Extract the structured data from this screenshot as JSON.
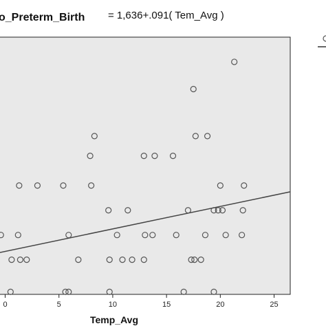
{
  "chart_data": {
    "type": "scatter",
    "equation": {
      "label": "o_Preterm_Birth",
      "text": "= 1,636+.091( Tem_Avg )"
    },
    "xlabel": "Temp_Avg",
    "x_ticks": [
      "0",
      "5",
      "10",
      "15",
      "20",
      "25"
    ],
    "xlim": [
      -0.8,
      26.5
    ],
    "ylim": [
      -0.1,
      10.3
    ],
    "grid": false,
    "fit_line": {
      "intercept": 1.636,
      "slope": 0.091
    },
    "points": [
      {
        "x": 21.3,
        "y": 9.3
      },
      {
        "x": 17.5,
        "y": 8.2
      },
      {
        "x": 8.3,
        "y": 6.3
      },
      {
        "x": 17.7,
        "y": 6.3
      },
      {
        "x": 18.8,
        "y": 6.3
      },
      {
        "x": 7.9,
        "y": 5.5
      },
      {
        "x": 12.9,
        "y": 5.5
      },
      {
        "x": 13.9,
        "y": 5.5
      },
      {
        "x": 15.6,
        "y": 5.5
      },
      {
        "x": 1.3,
        "y": 4.3
      },
      {
        "x": 3.0,
        "y": 4.3
      },
      {
        "x": 5.4,
        "y": 4.3
      },
      {
        "x": 8.0,
        "y": 4.3
      },
      {
        "x": 20.0,
        "y": 4.3
      },
      {
        "x": 22.2,
        "y": 4.3
      },
      {
        "x": 9.6,
        "y": 3.3
      },
      {
        "x": 11.4,
        "y": 3.3
      },
      {
        "x": 17.0,
        "y": 3.3
      },
      {
        "x": 19.4,
        "y": 3.3
      },
      {
        "x": 19.8,
        "y": 3.3
      },
      {
        "x": 20.2,
        "y": 3.3
      },
      {
        "x": 22.1,
        "y": 3.3
      },
      {
        "x": -0.4,
        "y": 2.3
      },
      {
        "x": 1.2,
        "y": 2.3
      },
      {
        "x": 5.9,
        "y": 2.3
      },
      {
        "x": 10.4,
        "y": 2.3
      },
      {
        "x": 13.0,
        "y": 2.3
      },
      {
        "x": 13.7,
        "y": 2.3
      },
      {
        "x": 15.9,
        "y": 2.3
      },
      {
        "x": 18.6,
        "y": 2.3
      },
      {
        "x": 20.5,
        "y": 2.3
      },
      {
        "x": 22.0,
        "y": 2.3
      },
      {
        "x": 0.6,
        "y": 1.3
      },
      {
        "x": 1.4,
        "y": 1.3
      },
      {
        "x": 2.0,
        "y": 1.3
      },
      {
        "x": 6.8,
        "y": 1.3
      },
      {
        "x": 9.7,
        "y": 1.3
      },
      {
        "x": 10.9,
        "y": 1.3
      },
      {
        "x": 11.8,
        "y": 1.3
      },
      {
        "x": 12.9,
        "y": 1.3
      },
      {
        "x": 17.3,
        "y": 1.3
      },
      {
        "x": 17.6,
        "y": 1.3
      },
      {
        "x": 18.2,
        "y": 1.3
      },
      {
        "x": 0.5,
        "y": 0.0
      },
      {
        "x": 5.6,
        "y": 0.0
      },
      {
        "x": 5.9,
        "y": 0.0
      },
      {
        "x": 9.7,
        "y": 0.0
      },
      {
        "x": 16.6,
        "y": 0.0
      },
      {
        "x": 19.4,
        "y": 0.0
      }
    ]
  },
  "colors": {
    "plot_background": "#e9e9e9",
    "marker_stroke": "#555555",
    "fit_line": "#444444"
  }
}
